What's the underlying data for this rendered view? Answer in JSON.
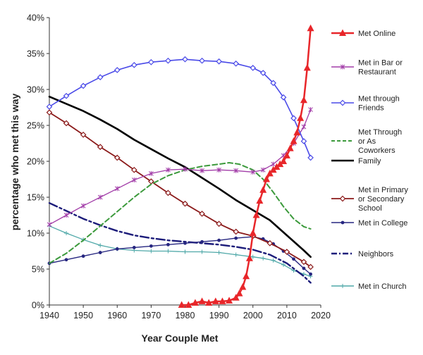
{
  "chart_data": {
    "type": "line",
    "title": "",
    "xlabel": "Year Couple Met",
    "ylabel": "percentage who met this way",
    "xlim": [
      1940,
      2020
    ],
    "ylim": [
      0,
      40
    ],
    "x_ticks": [
      1940,
      1950,
      1960,
      1970,
      1980,
      1990,
      2000,
      2010,
      2020
    ],
    "y_ticks": [
      0,
      5,
      10,
      15,
      20,
      25,
      30,
      35,
      40
    ],
    "x_tick_labels": [
      "1940",
      "1950",
      "1960",
      "1970",
      "1980",
      "1990",
      "2000",
      "2010",
      "2020"
    ],
    "y_tick_labels": [
      "0%",
      "5%",
      "10%",
      "15%",
      "20%",
      "25%",
      "30%",
      "35%",
      "40%"
    ],
    "grid": false,
    "legend_position": "right",
    "series": [
      {
        "name": "Met Online",
        "color": "#e8262a",
        "marker": "triangle",
        "dash": "solid",
        "width": 2.5,
        "x": [
          1979,
          1981,
          1983,
          1985,
          1987,
          1989,
          1991,
          1993,
          1995,
          1996,
          1997,
          1998,
          1999,
          2000,
          2001,
          2002,
          2003,
          2004,
          2005,
          2006,
          2007,
          2008,
          2009,
          2010,
          2011,
          2012,
          2013,
          2014,
          2015,
          2016,
          2017
        ],
        "values": [
          0,
          0,
          0.3,
          0.5,
          0.3,
          0.5,
          0.5,
          0.6,
          1.0,
          1.6,
          2.5,
          4.0,
          6.5,
          10.0,
          12.5,
          14.5,
          16.0,
          17.5,
          18.3,
          18.8,
          19.2,
          19.6,
          20.0,
          20.8,
          21.8,
          22.8,
          24.0,
          26.0,
          28.5,
          33.0,
          38.5
        ]
      },
      {
        "name": "Met in Bar or Restaurant",
        "color": "#a23da8",
        "marker": "asterisk",
        "dash": "solid",
        "width": 1.3,
        "x": [
          1940,
          1945,
          1950,
          1955,
          1960,
          1965,
          1970,
          1975,
          1980,
          1985,
          1990,
          1995,
          2000,
          2003,
          2006,
          2009,
          2012,
          2015,
          2017
        ],
        "values": [
          11.2,
          12.5,
          13.8,
          15.0,
          16.2,
          17.4,
          18.3,
          18.8,
          18.9,
          18.7,
          18.8,
          18.7,
          18.5,
          18.8,
          19.6,
          20.8,
          22.5,
          24.8,
          27.2
        ]
      },
      {
        "name": "Met through Friends",
        "color": "#4a4ae8",
        "marker": "diamond",
        "dash": "solid",
        "width": 1.6,
        "x": [
          1940,
          1945,
          1950,
          1955,
          1960,
          1965,
          1970,
          1975,
          1980,
          1985,
          1990,
          1995,
          2000,
          2003,
          2006,
          2009,
          2012,
          2015,
          2017
        ],
        "values": [
          27.6,
          29.1,
          30.5,
          31.7,
          32.7,
          33.4,
          33.8,
          34.0,
          34.2,
          34.0,
          33.9,
          33.6,
          33.0,
          32.3,
          30.9,
          28.9,
          26.0,
          22.8,
          20.5
        ]
      },
      {
        "name": "Met Through or As Coworkers",
        "color": "#3c9a3c",
        "marker": "none",
        "dash": "dashed",
        "width": 2,
        "x": [
          1940,
          1945,
          1950,
          1955,
          1960,
          1965,
          1970,
          1975,
          1980,
          1985,
          1990,
          1993,
          1996,
          2000,
          2003,
          2006,
          2009,
          2012,
          2015,
          2017
        ],
        "values": [
          5.8,
          7.2,
          9.0,
          11.0,
          13.0,
          15.0,
          16.8,
          18.0,
          18.8,
          19.3,
          19.6,
          19.8,
          19.6,
          18.8,
          17.5,
          15.7,
          13.7,
          12.0,
          10.9,
          10.6
        ]
      },
      {
        "name": "Family",
        "color": "#000000",
        "marker": "none",
        "dash": "solid",
        "width": 2.6,
        "x": [
          1940,
          1945,
          1950,
          1955,
          1960,
          1965,
          1970,
          1975,
          1980,
          1985,
          1990,
          1995,
          2000,
          2005,
          2010,
          2015,
          2017
        ],
        "values": [
          29.0,
          28.0,
          27.0,
          25.8,
          24.5,
          23.0,
          21.7,
          20.4,
          19.2,
          17.7,
          16.2,
          14.6,
          13.2,
          11.8,
          9.7,
          7.6,
          6.7
        ]
      },
      {
        "name": "Met in Primary or Secondary School",
        "color": "#8b1a1a",
        "marker": "diamond",
        "dash": "solid",
        "width": 1.8,
        "x": [
          1940,
          1945,
          1950,
          1955,
          1960,
          1965,
          1970,
          1975,
          1980,
          1985,
          1990,
          1995,
          2000,
          2005,
          2010,
          2015,
          2017
        ],
        "values": [
          26.8,
          25.3,
          23.7,
          22.0,
          20.5,
          18.8,
          17.2,
          15.6,
          14.1,
          12.7,
          11.3,
          10.2,
          9.6,
          8.6,
          7.4,
          6.0,
          5.3
        ]
      },
      {
        "name": "Met in College",
        "color": "#262680",
        "marker": "dot",
        "dash": "solid",
        "width": 1.4,
        "x": [
          1940,
          1945,
          1950,
          1955,
          1960,
          1965,
          1970,
          1975,
          1980,
          1985,
          1990,
          1995,
          2000,
          2003,
          2006,
          2009,
          2012,
          2015,
          2017
        ],
        "values": [
          5.8,
          6.3,
          6.8,
          7.3,
          7.8,
          8.0,
          8.2,
          8.4,
          8.6,
          8.8,
          9.0,
          9.3,
          9.5,
          9.2,
          8.5,
          7.5,
          6.4,
          5.1,
          4.3
        ]
      },
      {
        "name": "Neighbors",
        "color": "#1c1c7a",
        "marker": "none",
        "dash": "dashdot",
        "width": 2.4,
        "x": [
          1940,
          1945,
          1950,
          1955,
          1960,
          1965,
          1970,
          1975,
          1980,
          1985,
          1990,
          1995,
          2000,
          2005,
          2010,
          2015,
          2017
        ],
        "values": [
          14.2,
          13.1,
          12.0,
          11.1,
          10.3,
          9.7,
          9.3,
          9.0,
          8.8,
          8.6,
          8.4,
          8.1,
          7.7,
          7.0,
          5.8,
          4.0,
          3.1
        ]
      },
      {
        "name": "Met in Church",
        "color": "#4fa8a8",
        "marker": "plus",
        "dash": "solid",
        "width": 1.3,
        "x": [
          1940,
          1945,
          1950,
          1955,
          1960,
          1965,
          1970,
          1975,
          1980,
          1985,
          1990,
          1995,
          2000,
          2003,
          2006,
          2009,
          2012,
          2015,
          2017
        ],
        "values": [
          11.0,
          10.0,
          9.1,
          8.3,
          7.8,
          7.6,
          7.5,
          7.5,
          7.4,
          7.4,
          7.3,
          7.0,
          6.7,
          6.5,
          6.2,
          5.6,
          4.8,
          4.3,
          4.0
        ]
      }
    ]
  }
}
